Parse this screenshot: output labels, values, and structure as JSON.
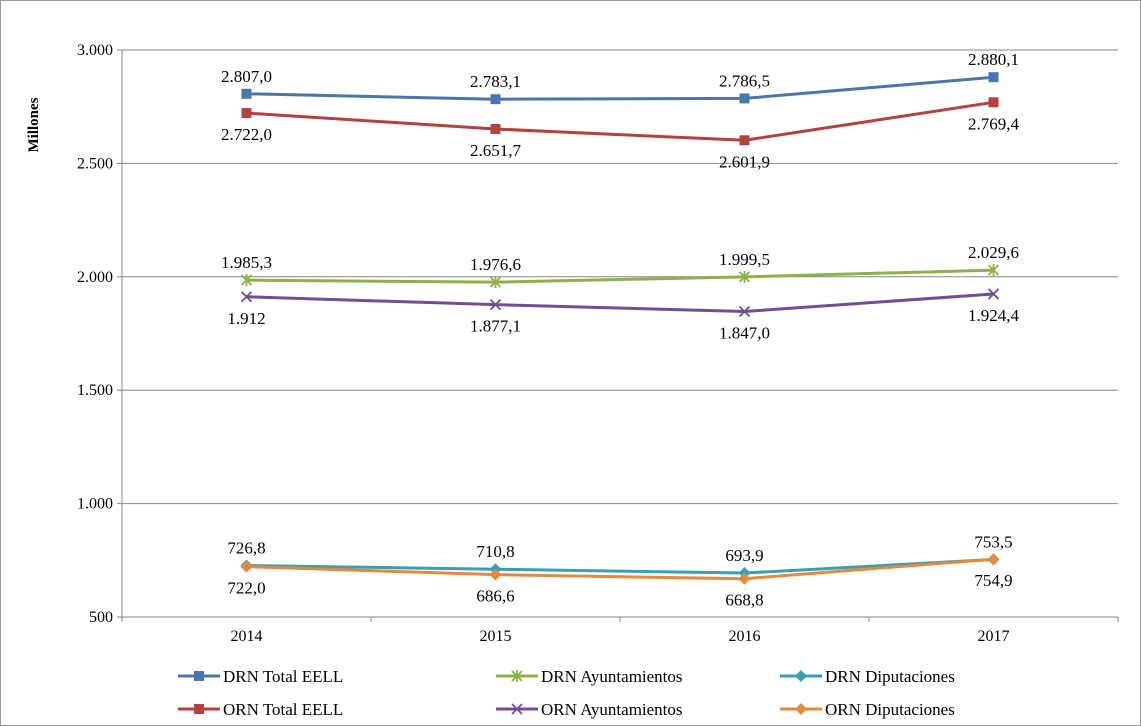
{
  "chart_data": {
    "type": "line",
    "ylabel": "Millones",
    "categories": [
      "2014",
      "2015",
      "2016",
      "2017"
    ],
    "ylim": [
      500,
      3000
    ],
    "yticks": [
      500,
      1000,
      1500,
      2000,
      2500,
      3000
    ],
    "ytick_labels": [
      "500",
      "1.000",
      "1.500",
      "2.000",
      "2.500",
      "3.000"
    ],
    "grid": true,
    "legend_position": "bottom",
    "series": [
      {
        "name": "DRN Total EELL",
        "color": "#4a76ae",
        "marker": "square",
        "label_pos": "above",
        "values": [
          2807.0,
          2783.1,
          2786.5,
          2880.1
        ],
        "labels": [
          "2.807,0",
          "2.783,1",
          "2.786,5",
          "2.880,1"
        ]
      },
      {
        "name": "ORN Total EELL",
        "color": "#b3423f",
        "marker": "square",
        "label_pos": "below",
        "values": [
          2722.0,
          2651.7,
          2601.9,
          2769.4
        ],
        "labels": [
          "2.722,0",
          "2.651,7",
          "2.601,9",
          "2.769,4"
        ]
      },
      {
        "name": "DRN Ayuntamientos",
        "color": "#8db14a",
        "marker": "star",
        "label_pos": "above",
        "values": [
          1985.3,
          1976.6,
          1999.5,
          2029.6
        ],
        "labels": [
          "1.985,3",
          "1.976,6",
          "1.999,5",
          "2.029,6"
        ]
      },
      {
        "name": "ORN Ayuntamientos",
        "color": "#6f4e97",
        "marker": "x",
        "label_pos": "below",
        "values": [
          1912,
          1877.1,
          1847.0,
          1924.4
        ],
        "labels": [
          "1.912",
          "1.877,1",
          "1.847,0",
          "1.924,4"
        ]
      },
      {
        "name": "DRN Diputaciones",
        "color": "#3a9eb4",
        "marker": "diamond",
        "label_pos": "above",
        "values": [
          726.8,
          710.8,
          693.9,
          753.5
        ],
        "labels": [
          "726,8",
          "710,8",
          "693,9",
          "753,5"
        ]
      },
      {
        "name": "ORN Diputaciones",
        "color": "#e48a3a",
        "marker": "diamond",
        "label_pos": "below",
        "values": [
          722.0,
          686.6,
          668.8,
          754.9
        ],
        "labels": [
          "722,0",
          "686,6",
          "668,8",
          "754,9"
        ]
      }
    ],
    "legend_order": [
      [
        "DRN Total EELL",
        "DRN Ayuntamientos",
        "DRN Diputaciones"
      ],
      [
        "ORN Total EELL",
        "ORN Ayuntamientos",
        "ORN Diputaciones"
      ]
    ]
  }
}
